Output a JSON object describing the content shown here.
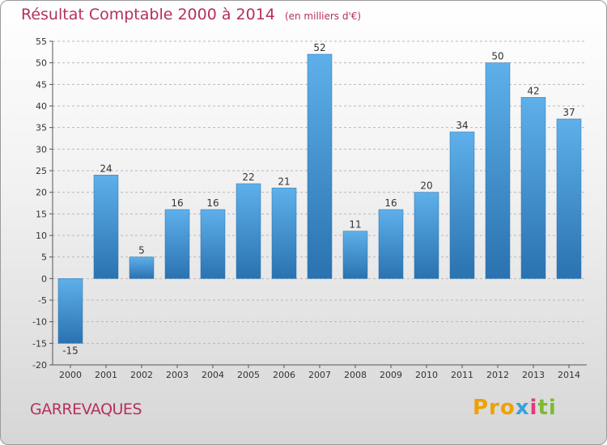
{
  "page": {
    "title": "Résultat Comptable 2000 à 2014",
    "subtitle": "(en milliers d'€)",
    "commune": "GARREVAQUES",
    "logo_text": [
      "Pro",
      "x",
      "i",
      "ti"
    ]
  },
  "colors": {
    "bar": "#3a8ed0",
    "bar_light": "#5eb0ea",
    "bar_dark": "#2a72b0",
    "title": "#b5305a",
    "grid": "#b8b8b8"
  },
  "chart_data": {
    "type": "bar",
    "title": "Résultat Comptable 2000 à 2014",
    "subtitle": "(en milliers d'€)",
    "xlabel": "",
    "ylabel": "",
    "categories": [
      "2000",
      "2001",
      "2002",
      "2003",
      "2004",
      "2005",
      "2006",
      "2007",
      "2008",
      "2009",
      "2010",
      "2011",
      "2012",
      "2013",
      "2014"
    ],
    "values": [
      -15,
      24,
      5,
      16,
      16,
      22,
      21,
      52,
      11,
      16,
      20,
      34,
      50,
      42,
      37
    ],
    "ylim": [
      -20,
      55
    ],
    "yticks": [
      55,
      50,
      45,
      40,
      35,
      30,
      25,
      20,
      15,
      10,
      5,
      0,
      -5,
      -10,
      -15,
      -20
    ],
    "grid": true,
    "legend": "none"
  }
}
